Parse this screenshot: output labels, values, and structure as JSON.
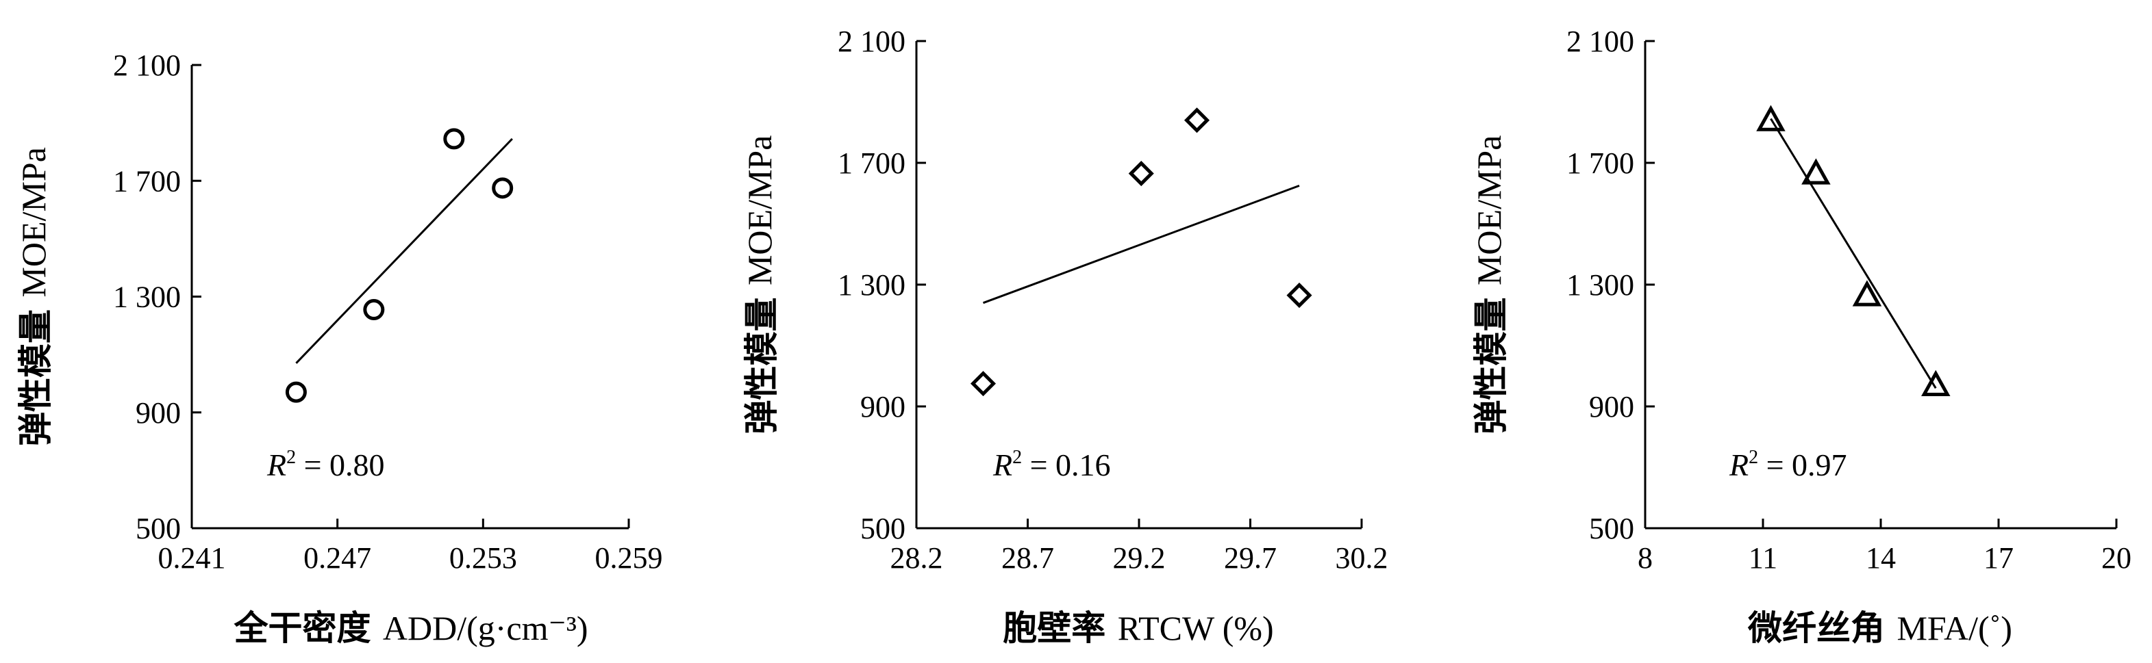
{
  "chart_data": [
    {
      "type": "scatter",
      "xlabel_cn": "全干密度",
      "xlabel_en": "ADD/(g·cm⁻³)",
      "ylabel_cn": "弹性模量",
      "ylabel_en": "MOE/MPa",
      "xlim": [
        0.241,
        0.259
      ],
      "ylim": [
        500,
        2100
      ],
      "xticks": [
        0.241,
        0.247,
        0.253,
        0.259
      ],
      "xtick_labels": [
        "0.241",
        "0.247",
        "0.253",
        "0.259"
      ],
      "yticks": [
        500,
        900,
        1300,
        1700,
        2100
      ],
      "ytick_labels": [
        "500",
        "900",
        "1 300",
        "1 700",
        "2 100"
      ],
      "marker": "circle",
      "points": [
        {
          "x": 0.2453,
          "y": 970
        },
        {
          "x": 0.2485,
          "y": 1255
        },
        {
          "x": 0.2518,
          "y": 1845
        },
        {
          "x": 0.2538,
          "y": 1675
        }
      ],
      "fit_line": [
        {
          "x": 0.2453,
          "y": 1070
        },
        {
          "x": 0.2542,
          "y": 1845
        }
      ],
      "r2_label": "R",
      "r2_sup": "2",
      "r2_value": " = 0.80"
    },
    {
      "type": "scatter",
      "xlabel_cn": "胞壁率",
      "xlabel_en": "RTCW (%)",
      "ylabel_cn": "弹性模量",
      "ylabel_en": "MOE/MPa",
      "xlim": [
        28.2,
        30.2
      ],
      "ylim": [
        500,
        2100
      ],
      "xticks": [
        28.2,
        28.7,
        29.2,
        29.7,
        30.2
      ],
      "xtick_labels": [
        "28.2",
        "28.7",
        "29.2",
        "29.7",
        "30.2"
      ],
      "yticks": [
        500,
        900,
        1300,
        1700,
        2100
      ],
      "ytick_labels": [
        "500",
        "900",
        "1 300",
        "1 700",
        "2 100"
      ],
      "marker": "diamond",
      "points": [
        {
          "x": 28.5,
          "y": 975
        },
        {
          "x": 29.21,
          "y": 1665
        },
        {
          "x": 29.46,
          "y": 1840
        },
        {
          "x": 29.92,
          "y": 1265
        }
      ],
      "fit_line": [
        {
          "x": 28.5,
          "y": 1240
        },
        {
          "x": 29.92,
          "y": 1625
        }
      ],
      "r2_label": "R",
      "r2_sup": "2",
      "r2_value": " = 0.16"
    },
    {
      "type": "scatter",
      "xlabel_cn": "微纤丝角",
      "xlabel_en": "MFA/(˚)",
      "ylabel_cn": "弹性模量",
      "ylabel_en": "MOE/MPa",
      "xlim": [
        8,
        20
      ],
      "ylim": [
        500,
        2100
      ],
      "xticks": [
        8,
        11,
        14,
        17,
        20
      ],
      "xtick_labels": [
        "8",
        "11",
        "14",
        "17",
        "20"
      ],
      "yticks": [
        500,
        900,
        1300,
        1700,
        2100
      ],
      "ytick_labels": [
        "500",
        "900",
        "1 300",
        "1 700",
        "2 100"
      ],
      "marker": "triangle",
      "points": [
        {
          "x": 11.2,
          "y": 1840
        },
        {
          "x": 12.35,
          "y": 1665
        },
        {
          "x": 13.65,
          "y": 1265
        },
        {
          "x": 15.4,
          "y": 970
        }
      ],
      "fit_line": [
        {
          "x": 11.2,
          "y": 1845
        },
        {
          "x": 15.4,
          "y": 960
        }
      ],
      "r2_label": "R",
      "r2_sup": "2",
      "r2_value": " = 0.97"
    }
  ]
}
